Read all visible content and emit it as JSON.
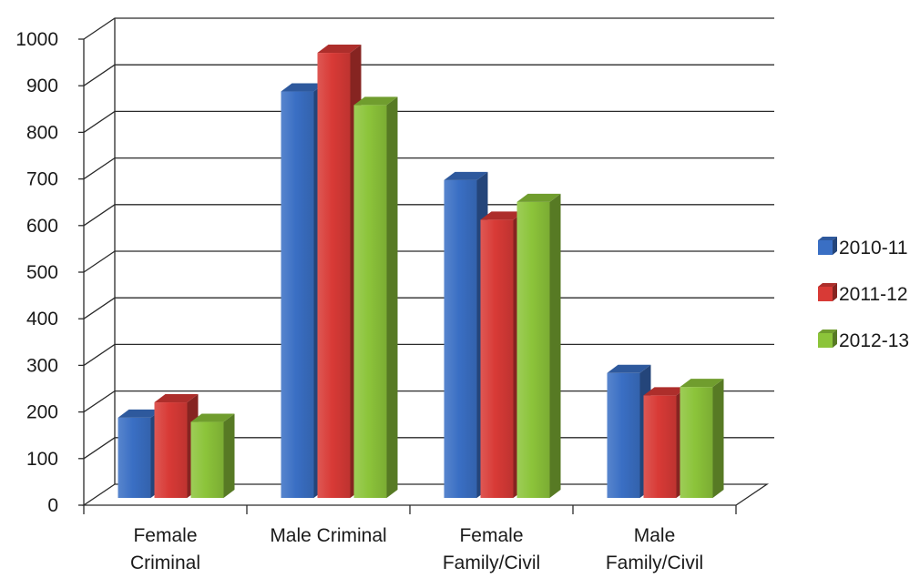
{
  "chart_data": {
    "type": "bar",
    "categories": [
      [
        "Female",
        "Criminal"
      ],
      [
        "Male  Criminal"
      ],
      [
        "Female",
        "Family/Civil"
      ],
      [
        "Male",
        "Family/Civil"
      ]
    ],
    "series": [
      {
        "name": "2010-11",
        "values": [
          172,
          872,
          682,
          268
        ],
        "color": "#3A6FC4"
      },
      {
        "name": "2011-12",
        "values": [
          205,
          955,
          597,
          220
        ],
        "color": "#D83A36"
      },
      {
        "name": "2012-13",
        "values": [
          163,
          843,
          635,
          238
        ],
        "color": "#8CC43A"
      }
    ],
    "ylim": [
      0,
      1000
    ],
    "yticks": [
      "0",
      "100",
      "200",
      "300",
      "400",
      "500",
      "600",
      "700",
      "800",
      "900",
      "1000"
    ],
    "grid": true,
    "legend_position": "right",
    "style": "3d-clustered-column"
  }
}
